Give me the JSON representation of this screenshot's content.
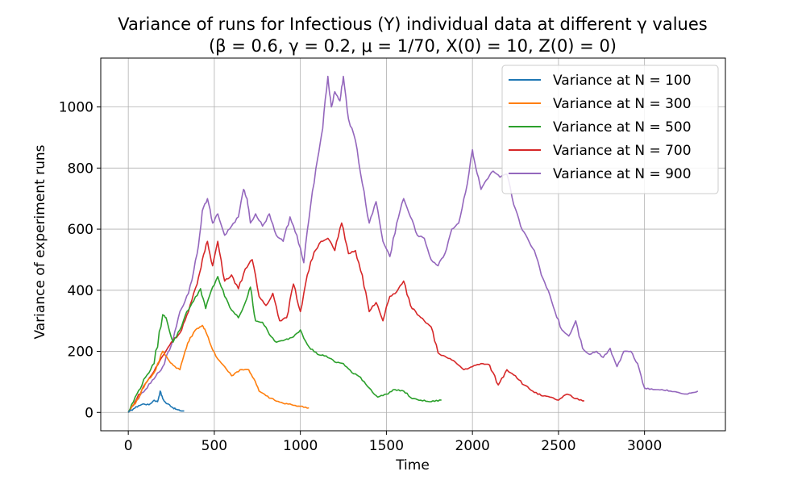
{
  "chart_data": {
    "type": "line",
    "title": "Variance of runs for Infectious (Y) individual data at different γ values",
    "subtitle": "(β = 0.6, γ = 0.2, μ = 1/70, X(0) = 10, Z(0) = 0)",
    "xlabel": "Time",
    "ylabel": "Variance of experiment runs",
    "xlim": [
      -160,
      3470
    ],
    "ylim": [
      -60,
      1160
    ],
    "xticks": [
      0,
      500,
      1000,
      1500,
      2000,
      2500,
      3000
    ],
    "yticks": [
      0,
      200,
      400,
      600,
      800,
      1000
    ],
    "grid": true,
    "legend_position": "top-right",
    "series": [
      {
        "name": "Variance at N = 100",
        "color": "#1f77b4",
        "x": [
          0,
          30,
          60,
          90,
          120,
          150,
          170,
          185,
          200,
          220,
          240,
          260,
          280,
          300,
          325
        ],
        "y": [
          0,
          12,
          22,
          28,
          25,
          40,
          35,
          70,
          45,
          30,
          25,
          15,
          10,
          6,
          5
        ]
      },
      {
        "name": "Variance at N = 300",
        "color": "#ff7f0e",
        "x": [
          0,
          50,
          100,
          150,
          200,
          230,
          260,
          300,
          330,
          360,
          400,
          430,
          450,
          480,
          520,
          560,
          600,
          650,
          700,
          730,
          760,
          800,
          850,
          900,
          950,
          1000,
          1050
        ],
        "y": [
          0,
          40,
          95,
          130,
          200,
          175,
          155,
          140,
          200,
          245,
          275,
          285,
          265,
          220,
          175,
          150,
          120,
          140,
          140,
          110,
          70,
          55,
          40,
          30,
          25,
          20,
          15
        ]
      },
      {
        "name": "Variance at N = 500",
        "color": "#2ca02c",
        "x": [
          0,
          50,
          100,
          150,
          200,
          220,
          260,
          300,
          340,
          380,
          420,
          450,
          480,
          520,
          560,
          600,
          640,
          680,
          710,
          740,
          780,
          820,
          860,
          900,
          950,
          1000,
          1050,
          1100,
          1150,
          1200,
          1250,
          1300,
          1350,
          1400,
          1450,
          1500,
          1550,
          1600,
          1650,
          1700,
          1750,
          1820
        ],
        "y": [
          0,
          60,
          115,
          160,
          320,
          310,
          230,
          270,
          330,
          365,
          405,
          340,
          395,
          445,
          380,
          335,
          310,
          360,
          410,
          300,
          295,
          255,
          230,
          235,
          245,
          270,
          215,
          190,
          185,
          165,
          160,
          130,
          115,
          80,
          50,
          60,
          75,
          70,
          45,
          40,
          35,
          40
        ]
      },
      {
        "name": "Variance at N = 700",
        "color": "#d62728",
        "x": [
          0,
          50,
          100,
          150,
          200,
          250,
          300,
          350,
          400,
          430,
          460,
          490,
          520,
          560,
          600,
          640,
          680,
          720,
          760,
          800,
          840,
          880,
          920,
          960,
          1000,
          1040,
          1080,
          1120,
          1160,
          1200,
          1240,
          1280,
          1320,
          1360,
          1400,
          1440,
          1480,
          1520,
          1560,
          1600,
          1640,
          1680,
          1720,
          1760,
          1800,
          1850,
          1900,
          1950,
          2000,
          2050,
          2100,
          2150,
          2200,
          2250,
          2300,
          2350,
          2400,
          2450,
          2500,
          2550,
          2600,
          2650
        ],
        "y": [
          0,
          45,
          95,
          135,
          185,
          230,
          260,
          330,
          420,
          500,
          560,
          480,
          560,
          430,
          450,
          405,
          470,
          500,
          380,
          350,
          390,
          300,
          310,
          420,
          330,
          450,
          525,
          560,
          570,
          530,
          620,
          520,
          530,
          450,
          330,
          360,
          300,
          380,
          395,
          430,
          350,
          320,
          300,
          280,
          195,
          180,
          165,
          140,
          150,
          160,
          155,
          90,
          140,
          120,
          90,
          70,
          55,
          50,
          40,
          60,
          45,
          38
        ]
      },
      {
        "name": "Variance at N = 900",
        "color": "#9467bd",
        "x": [
          0,
          50,
          100,
          150,
          200,
          250,
          300,
          350,
          400,
          430,
          460,
          490,
          520,
          560,
          600,
          640,
          670,
          690,
          710,
          740,
          780,
          820,
          860,
          900,
          940,
          980,
          1020,
          1060,
          1100,
          1130,
          1160,
          1180,
          1200,
          1230,
          1250,
          1280,
          1320,
          1360,
          1400,
          1440,
          1480,
          1520,
          1560,
          1600,
          1640,
          1680,
          1720,
          1760,
          1800,
          1840,
          1880,
          1920,
          1960,
          2000,
          2020,
          2050,
          2080,
          2120,
          2160,
          2200,
          2240,
          2280,
          2320,
          2360,
          2400,
          2440,
          2480,
          2520,
          2560,
          2600,
          2640,
          2680,
          2720,
          2760,
          2800,
          2840,
          2880,
          2920,
          2960,
          3000,
          3050,
          3100,
          3150,
          3200,
          3250,
          3310
        ],
        "y": [
          0,
          40,
          75,
          110,
          150,
          220,
          330,
          390,
          520,
          660,
          700,
          620,
          650,
          580,
          610,
          640,
          730,
          700,
          620,
          650,
          610,
          650,
          580,
          560,
          640,
          580,
          490,
          680,
          830,
          930,
          1100,
          1000,
          1050,
          1020,
          1100,
          960,
          890,
          750,
          620,
          690,
          560,
          510,
          620,
          700,
          640,
          580,
          570,
          500,
          480,
          520,
          600,
          620,
          720,
          860,
          800,
          730,
          760,
          790,
          770,
          780,
          680,
          610,
          570,
          530,
          450,
          400,
          330,
          270,
          250,
          300,
          210,
          190,
          200,
          180,
          210,
          150,
          200,
          200,
          160,
          80,
          75,
          75,
          70,
          65,
          60,
          70
        ]
      }
    ]
  }
}
